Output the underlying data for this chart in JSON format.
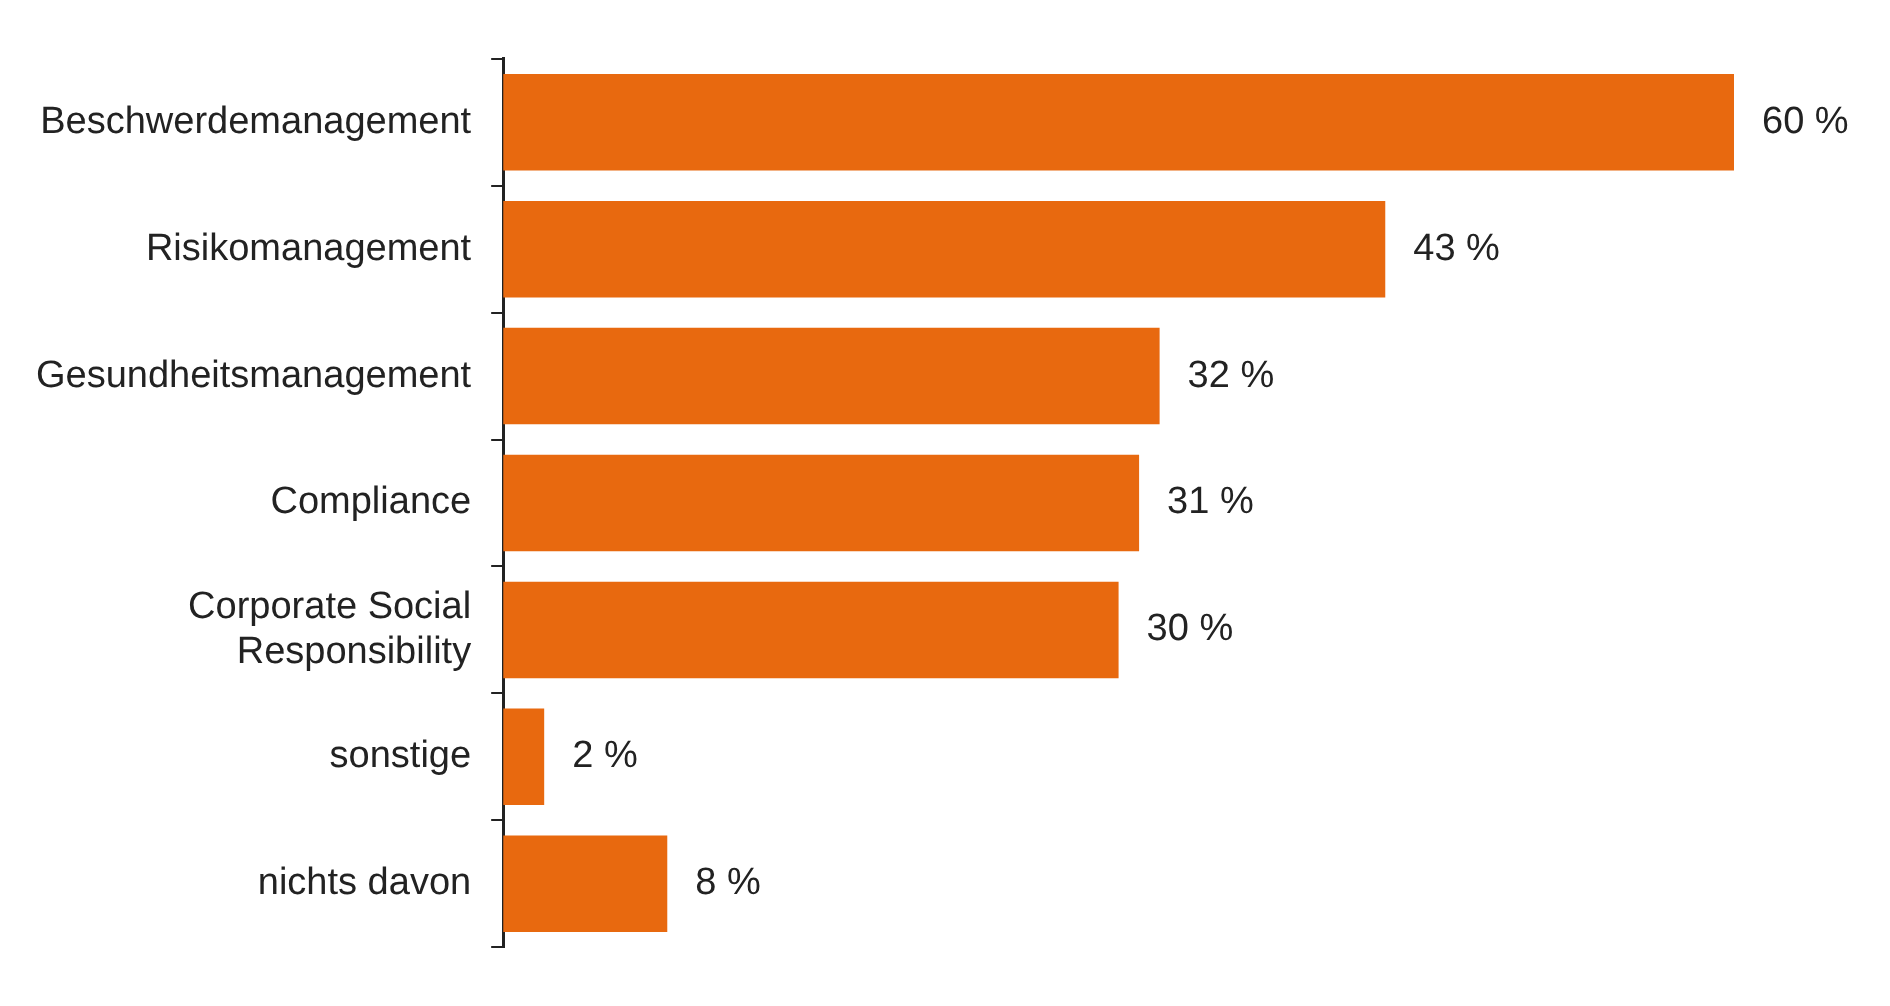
{
  "chart_data": {
    "type": "bar",
    "orientation": "horizontal",
    "categories": [
      "Beschwerdemanagement",
      "Risikomanagement",
      "Gesundheitsmanagement",
      "Compliance",
      "Corporate Social Responsibility",
      "sonstige",
      "nichts davon"
    ],
    "values": [
      60,
      43,
      32,
      31,
      30,
      2,
      8
    ],
    "value_labels": [
      "60 %",
      "43 %",
      "32 %",
      "31 %",
      "30 %",
      "2 %",
      "8 %"
    ],
    "color": "#e8690f",
    "legend": false
  }
}
